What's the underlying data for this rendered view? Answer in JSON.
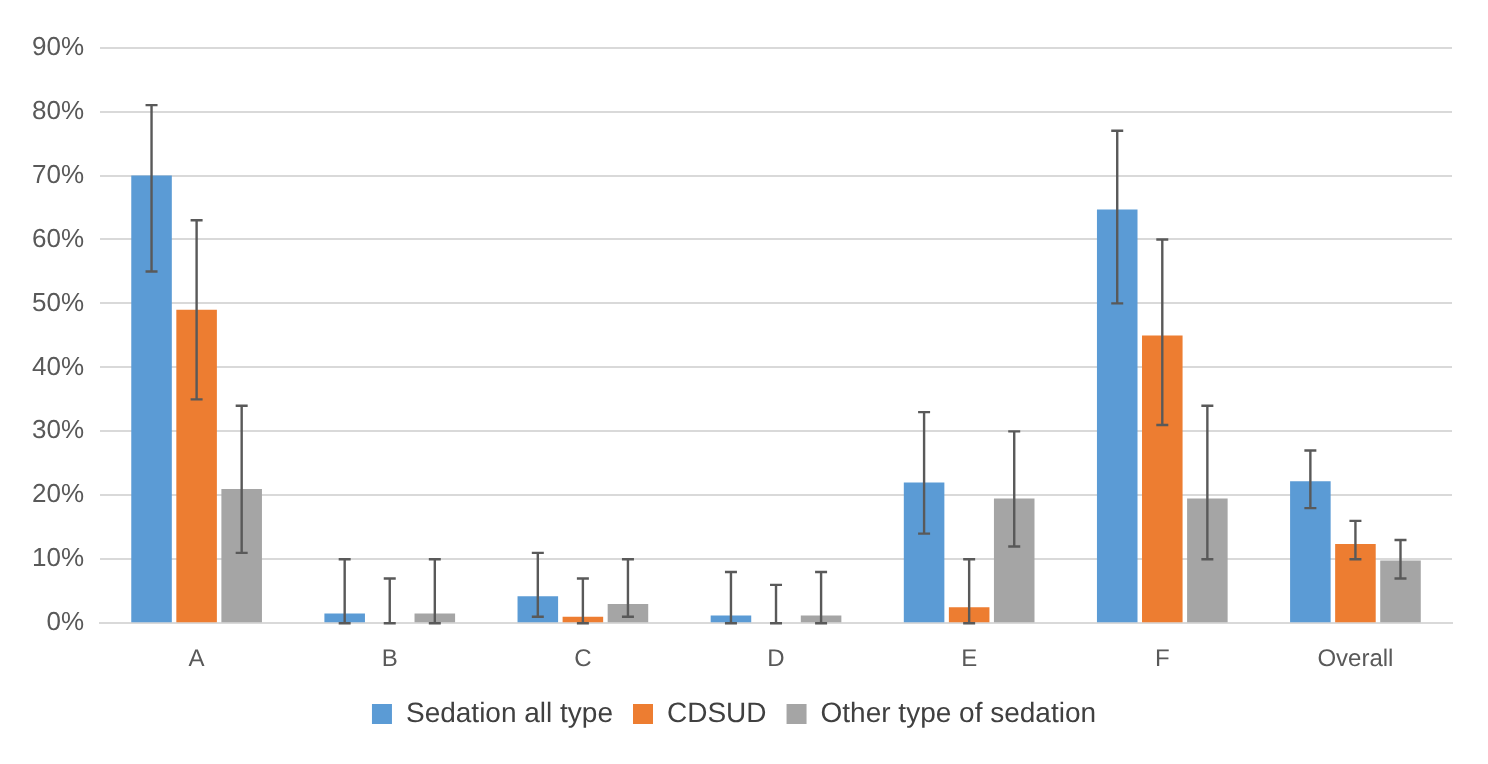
{
  "chart_data": {
    "type": "bar",
    "categories": [
      "A",
      "B",
      "C",
      "D",
      "E",
      "F",
      "Overall"
    ],
    "series": [
      {
        "name": "Sedation all type",
        "color": "#5b9bd5",
        "values": [
          70,
          1.5,
          4.2,
          1.2,
          22,
          64.7,
          22.2
        ],
        "errors": [
          [
            55,
            81
          ],
          [
            0,
            10
          ],
          [
            1,
            11
          ],
          [
            0,
            8
          ],
          [
            14,
            33
          ],
          [
            50,
            77
          ],
          [
            18,
            27
          ]
        ]
      },
      {
        "name": "CDSUD",
        "color": "#ed7d31",
        "values": [
          49,
          0,
          1,
          0,
          2.5,
          45,
          12.4
        ],
        "errors": [
          [
            35,
            63
          ],
          [
            0,
            7
          ],
          [
            0,
            7
          ],
          [
            0,
            6
          ],
          [
            0,
            10
          ],
          [
            31,
            60
          ],
          [
            10,
            16
          ]
        ]
      },
      {
        "name": "Other type of sedation",
        "color": "#a5a5a5",
        "values": [
          21,
          1.5,
          3,
          1.2,
          19.5,
          19.5,
          9.8
        ],
        "errors": [
          [
            11,
            34
          ],
          [
            0,
            10
          ],
          [
            1,
            10
          ],
          [
            0,
            8
          ],
          [
            12,
            30
          ],
          [
            10,
            34
          ],
          [
            7,
            13
          ]
        ]
      }
    ],
    "ylim": [
      0,
      90
    ],
    "yticks": [
      {
        "value": 0,
        "label": "0%"
      },
      {
        "value": 10,
        "label": "10%"
      },
      {
        "value": 20,
        "label": "20%"
      },
      {
        "value": 30,
        "label": "30%"
      },
      {
        "value": 40,
        "label": "40%"
      },
      {
        "value": 50,
        "label": "50%"
      },
      {
        "value": 60,
        "label": "60%"
      },
      {
        "value": 70,
        "label": "70%"
      },
      {
        "value": 80,
        "label": "80%"
      },
      {
        "value": 90,
        "label": "90%"
      }
    ],
    "grid": "y",
    "legend": "bottom"
  }
}
